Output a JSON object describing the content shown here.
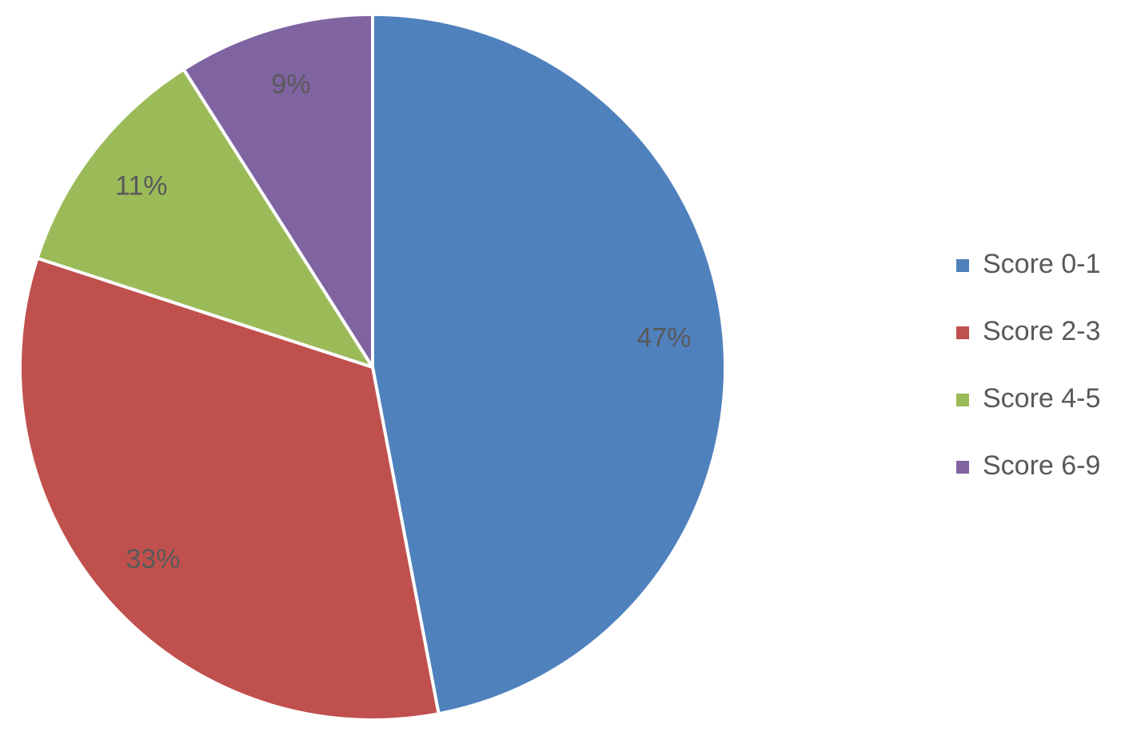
{
  "chart_data": {
    "type": "pie",
    "categories": [
      "Score 0-1",
      "Score 2-3",
      "Score 4-5",
      "Score 6-9"
    ],
    "values": [
      47,
      33,
      11,
      9
    ],
    "value_labels": [
      "47%",
      "33%",
      "11%",
      "9%"
    ],
    "colors": [
      "#4f81bd",
      "#c0504d",
      "#9bbb59",
      "#8064a2"
    ],
    "legend": "right"
  }
}
